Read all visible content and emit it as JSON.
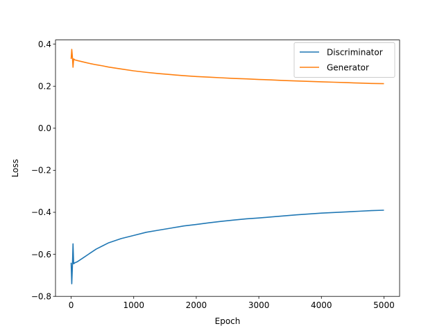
{
  "chart_data": {
    "type": "line",
    "title": "",
    "xlabel": "Epoch",
    "ylabel": "Loss",
    "xlim": [
      -250,
      5250
    ],
    "ylim": [
      -0.8,
      0.42
    ],
    "x_ticks": [
      0,
      1000,
      2000,
      3000,
      4000,
      5000
    ],
    "y_ticks": [
      -0.8,
      -0.6,
      -0.4,
      -0.2,
      0.0,
      0.2,
      0.4
    ],
    "x_tick_labels": [
      "0",
      "1000",
      "2000",
      "3000",
      "4000",
      "5000"
    ],
    "y_tick_labels": [
      "−0.8",
      "−0.6",
      "−0.4",
      "−0.2",
      "0.0",
      "0.2",
      "0.4"
    ],
    "grid": false,
    "legend_position": "upper-right",
    "series": [
      {
        "name": "Discriminator",
        "color": "#1f77b4",
        "x": [
          0,
          10,
          20,
          30,
          40,
          60,
          100,
          200,
          300,
          400,
          500,
          600,
          800,
          1000,
          1200,
          1400,
          1600,
          1800,
          2000,
          2200,
          2400,
          2600,
          2800,
          3000,
          3200,
          3400,
          3600,
          3800,
          4000,
          4200,
          4400,
          4600,
          4800,
          5000
        ],
        "y": [
          -0.64,
          -0.74,
          -0.66,
          -0.55,
          -0.645,
          -0.64,
          -0.635,
          -0.615,
          -0.595,
          -0.575,
          -0.56,
          -0.545,
          -0.525,
          -0.51,
          -0.495,
          -0.485,
          -0.475,
          -0.465,
          -0.458,
          -0.45,
          -0.443,
          -0.437,
          -0.431,
          -0.427,
          -0.422,
          -0.417,
          -0.412,
          -0.408,
          -0.404,
          -0.401,
          -0.398,
          -0.395,
          -0.392,
          -0.39
        ]
      },
      {
        "name": "Generator",
        "color": "#ff7f0e",
        "x": [
          0,
          10,
          20,
          30,
          40,
          60,
          100,
          200,
          300,
          400,
          500,
          600,
          800,
          1000,
          1200,
          1400,
          1600,
          1800,
          2000,
          2200,
          2400,
          2600,
          2800,
          3000,
          3200,
          3400,
          3600,
          3800,
          4000,
          4200,
          4400,
          4600,
          4800,
          5000
        ],
        "y": [
          0.33,
          0.375,
          0.34,
          0.29,
          0.33,
          0.325,
          0.322,
          0.315,
          0.308,
          0.302,
          0.297,
          0.291,
          0.282,
          0.273,
          0.266,
          0.26,
          0.255,
          0.25,
          0.246,
          0.243,
          0.24,
          0.237,
          0.235,
          0.232,
          0.23,
          0.227,
          0.225,
          0.223,
          0.221,
          0.219,
          0.217,
          0.215,
          0.213,
          0.212
        ]
      }
    ]
  }
}
